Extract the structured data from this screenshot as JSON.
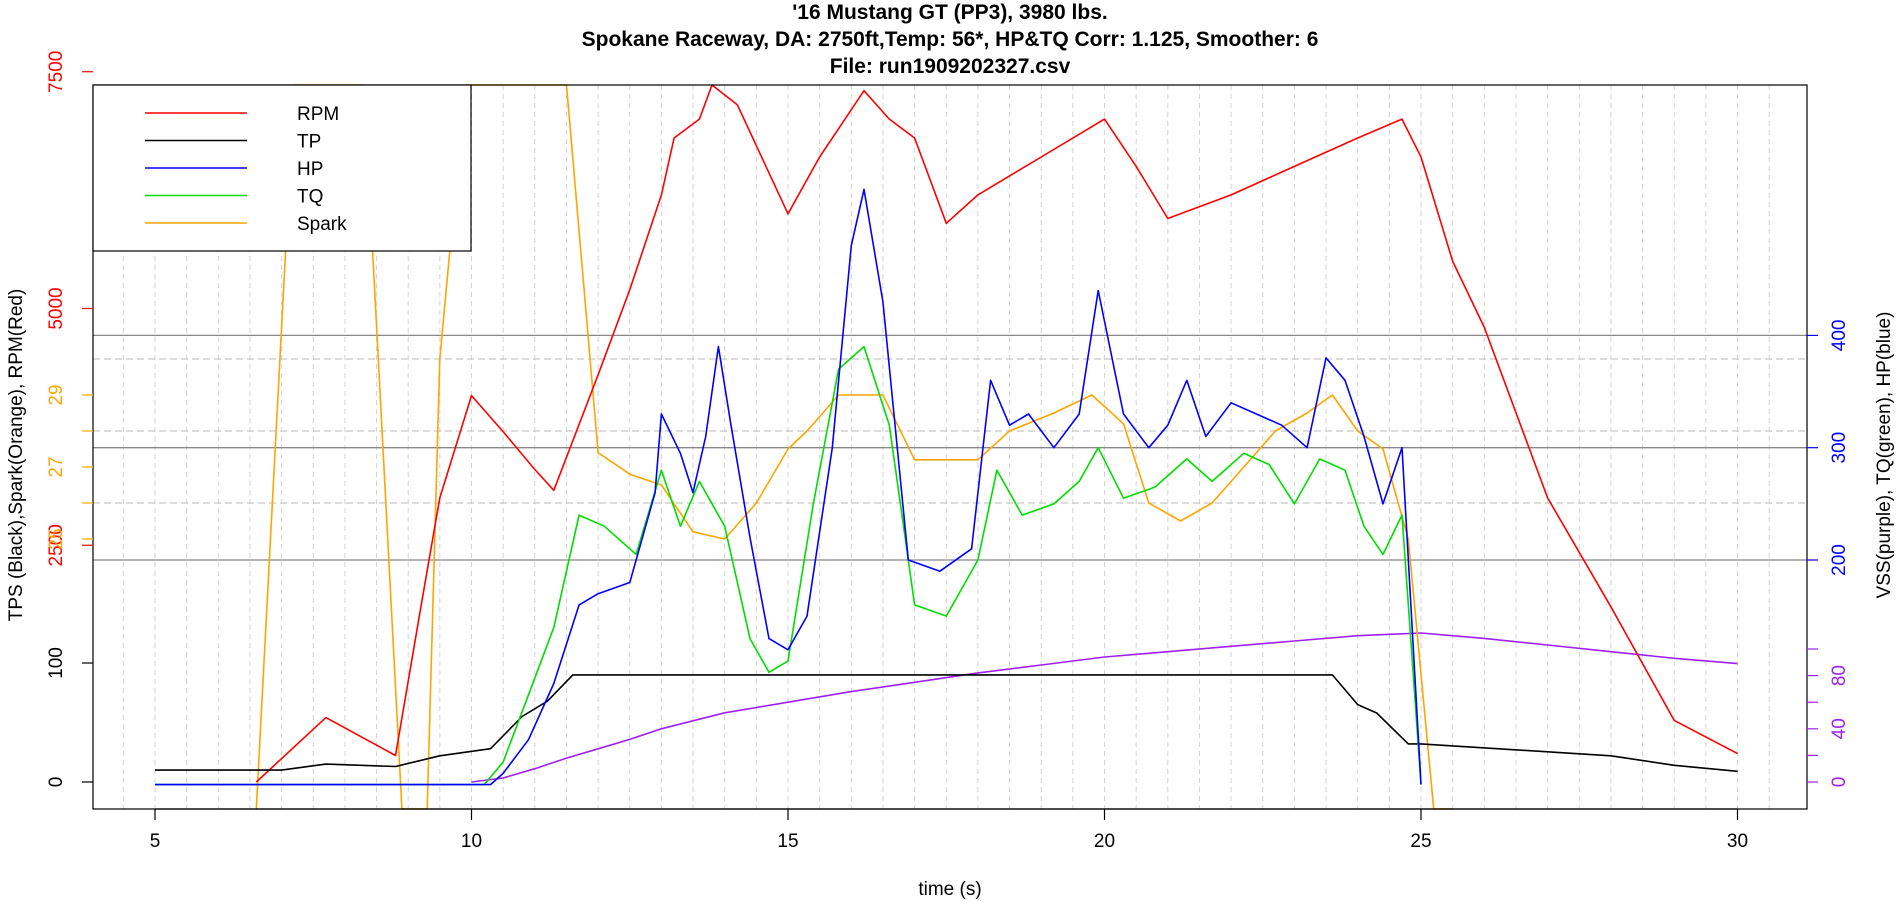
{
  "chart_data": {
    "type": "line",
    "title_lines": [
      "'16 Mustang GT (PP3), 3980 lbs.",
      "Spokane Raceway, DA: 2750ft,Temp: 56*, HP&TQ Corr: 1.125, Smoother: 6",
      "File: run1909202327.csv"
    ],
    "xlabel": "time (s)",
    "ylabel_left": "TPS (Black),Spark(Orange), RPM(Red)",
    "ylabel_right": "VSS(purple), TQ(green), HP(blue)",
    "xlim": [
      4,
      31
    ],
    "x_ticks": [
      "5",
      "10",
      "15",
      "20",
      "25",
      "30"
    ],
    "x_tick_values": [
      5,
      10,
      15,
      20,
      25,
      30
    ],
    "left_ticks": [
      {
        "label": "0",
        "color": "#000000",
        "tps": 0
      },
      {
        "label": "100",
        "color": "#000000",
        "tps": 100
      },
      {
        "label": "2500",
        "color": "#ff0000",
        "rpm": 2500
      },
      {
        "label": "5000",
        "color": "#ff0000",
        "rpm": 5000
      },
      {
        "label": "7500",
        "color": "#ff0000",
        "rpm": 7500
      },
      {
        "label": "25",
        "color": "#ffa500",
        "spark": 25
      },
      {
        "label": "27",
        "color": "#ffa500",
        "spark": 27
      },
      {
        "label": "29",
        "color": "#ffa500",
        "spark": 29
      }
    ],
    "right_ticks": [
      {
        "label": "0",
        "color": "#a020f0",
        "vss": 0
      },
      {
        "label": "40",
        "color": "#a020f0",
        "vss": 40
      },
      {
        "label": "80",
        "color": "#a020f0",
        "vss": 80
      },
      {
        "label": "200",
        "color": "#0000ff",
        "hp": 200
      },
      {
        "label": "300",
        "color": "#0000ff",
        "hp": 300
      },
      {
        "label": "400",
        "color": "#0000ff",
        "hp": 400
      }
    ],
    "colors": {
      "rpm": "#ff0000",
      "tp": "#000000",
      "hp": "#0000ff",
      "tq": "#00dd00",
      "spark": "#ffa500",
      "vss": "#a020f0"
    },
    "legend": {
      "position": "top-left",
      "items": [
        {
          "label": "RPM",
          "color": "#ff0000"
        },
        {
          "label": "TP",
          "color": "#000000"
        },
        {
          "label": "HP",
          "color": "#0000ff"
        },
        {
          "label": "TQ",
          "color": "#00dd00"
        },
        {
          "label": "Spark",
          "color": "#ffa500"
        }
      ]
    },
    "series": [
      {
        "name": "RPM",
        "color": "#ff0000",
        "units": "rpm",
        "points": [
          [
            6.6,
            0
          ],
          [
            7.7,
            680
          ],
          [
            8.8,
            280
          ],
          [
            9.2,
            1850
          ],
          [
            9.5,
            3000
          ],
          [
            10.0,
            4080
          ],
          [
            10.5,
            3700
          ],
          [
            11.0,
            3300
          ],
          [
            11.3,
            3080
          ],
          [
            12.0,
            4300
          ],
          [
            12.5,
            5200
          ],
          [
            13.0,
            6200
          ],
          [
            13.2,
            6800
          ],
          [
            13.6,
            7000
          ],
          [
            13.8,
            7650
          ],
          [
            14.2,
            7150
          ],
          [
            15.0,
            6000
          ],
          [
            15.5,
            6600
          ],
          [
            16.2,
            7300
          ],
          [
            16.6,
            7000
          ],
          [
            17.0,
            6800
          ],
          [
            17.5,
            5900
          ],
          [
            18.0,
            6200
          ],
          [
            19.0,
            6600
          ],
          [
            20.0,
            7000
          ],
          [
            20.5,
            6500
          ],
          [
            21.0,
            5950
          ],
          [
            22.0,
            6200
          ],
          [
            23.0,
            6500
          ],
          [
            24.0,
            6800
          ],
          [
            24.7,
            7000
          ],
          [
            25.0,
            6600
          ],
          [
            25.5,
            5500
          ],
          [
            26.0,
            4800
          ],
          [
            27.0,
            3000
          ],
          [
            28.0,
            1850
          ],
          [
            29.0,
            650
          ],
          [
            30.0,
            300
          ]
        ]
      },
      {
        "name": "TP",
        "color": "#000000",
        "units": "percent",
        "points": [
          [
            5,
            10
          ],
          [
            7,
            10
          ],
          [
            7.7,
            15
          ],
          [
            8.8,
            13
          ],
          [
            9.5,
            22
          ],
          [
            10.3,
            28
          ],
          [
            10.8,
            55
          ],
          [
            11.2,
            68
          ],
          [
            11.6,
            90
          ],
          [
            12.0,
            90
          ],
          [
            23.6,
            90
          ],
          [
            24.0,
            65
          ],
          [
            24.3,
            58
          ],
          [
            24.8,
            32
          ],
          [
            25.0,
            32
          ],
          [
            28.0,
            22
          ],
          [
            29.0,
            14
          ],
          [
            30.0,
            9
          ]
        ]
      },
      {
        "name": "Spark",
        "color": "#ffa500",
        "units": "deg",
        "points": [
          [
            6.6,
            0
          ],
          [
            7.2,
            200
          ],
          [
            7.7,
            560
          ],
          [
            8.3,
            180
          ],
          [
            8.9,
            0
          ],
          [
            9.3,
            0
          ],
          [
            9.5,
            30
          ],
          [
            9.9,
            560
          ],
          [
            10.3,
            740
          ],
          [
            10.6,
            620
          ],
          [
            11.1,
            460
          ],
          [
            11.5,
            370
          ],
          [
            12.0,
            27.4
          ],
          [
            12.5,
            26.8
          ],
          [
            13.0,
            26.5
          ],
          [
            13.5,
            25.2
          ],
          [
            14.0,
            25.0
          ],
          [
            14.5,
            26.0
          ],
          [
            15.0,
            27.5
          ],
          [
            15.3,
            28.0
          ],
          [
            15.8,
            29.0
          ],
          [
            16.5,
            29.0
          ],
          [
            17.0,
            27.2
          ],
          [
            17.5,
            27.2
          ],
          [
            18.0,
            27.2
          ],
          [
            18.5,
            28.0
          ],
          [
            19.2,
            28.5
          ],
          [
            19.8,
            29.0
          ],
          [
            20.3,
            28.2
          ],
          [
            20.7,
            26.0
          ],
          [
            21.2,
            25.5
          ],
          [
            21.7,
            26.0
          ],
          [
            22.2,
            27.0
          ],
          [
            22.7,
            28.0
          ],
          [
            23.2,
            28.5
          ],
          [
            23.6,
            29.0
          ],
          [
            24.0,
            28.0
          ],
          [
            24.4,
            27.5
          ],
          [
            24.8,
            25.0
          ],
          [
            25.2,
            -50
          ],
          [
            25.5,
            -200
          ]
        ]
      },
      {
        "name": "HP",
        "color": "#0000ff",
        "units": "hp",
        "points": [
          [
            5,
            0
          ],
          [
            10.0,
            0
          ],
          [
            10.3,
            0
          ],
          [
            10.5,
            10
          ],
          [
            10.9,
            40
          ],
          [
            11.3,
            90
          ],
          [
            11.7,
            160
          ],
          [
            12.0,
            170
          ],
          [
            12.5,
            180
          ],
          [
            12.9,
            260
          ],
          [
            13.0,
            330
          ],
          [
            13.3,
            295
          ],
          [
            13.5,
            260
          ],
          [
            13.7,
            310
          ],
          [
            13.9,
            390
          ],
          [
            14.1,
            320
          ],
          [
            14.4,
            220
          ],
          [
            14.7,
            130
          ],
          [
            15.0,
            120
          ],
          [
            15.3,
            150
          ],
          [
            15.7,
            300
          ],
          [
            16.0,
            480
          ],
          [
            16.2,
            530
          ],
          [
            16.5,
            430
          ],
          [
            16.9,
            200
          ],
          [
            17.4,
            190
          ],
          [
            17.9,
            210
          ],
          [
            18.2,
            360
          ],
          [
            18.5,
            320
          ],
          [
            18.8,
            330
          ],
          [
            19.2,
            300
          ],
          [
            19.6,
            330
          ],
          [
            19.9,
            440
          ],
          [
            20.3,
            330
          ],
          [
            20.7,
            300
          ],
          [
            21.0,
            320
          ],
          [
            21.3,
            360
          ],
          [
            21.6,
            310
          ],
          [
            22.0,
            340
          ],
          [
            22.4,
            330
          ],
          [
            22.8,
            320
          ],
          [
            23.2,
            300
          ],
          [
            23.5,
            380
          ],
          [
            23.8,
            360
          ],
          [
            24.1,
            310
          ],
          [
            24.4,
            250
          ],
          [
            24.7,
            300
          ],
          [
            25.0,
            0
          ]
        ]
      },
      {
        "name": "TQ",
        "color": "#00dd00",
        "units": "lb-ft",
        "points": [
          [
            5,
            0
          ],
          [
            10.2,
            0
          ],
          [
            10.5,
            20
          ],
          [
            10.9,
            80
          ],
          [
            11.3,
            140
          ],
          [
            11.7,
            240
          ],
          [
            12.1,
            230
          ],
          [
            12.6,
            205
          ],
          [
            13.0,
            280
          ],
          [
            13.3,
            230
          ],
          [
            13.6,
            270
          ],
          [
            14.0,
            230
          ],
          [
            14.4,
            130
          ],
          [
            14.7,
            100
          ],
          [
            15.0,
            110
          ],
          [
            15.4,
            250
          ],
          [
            15.8,
            370
          ],
          [
            16.2,
            390
          ],
          [
            16.6,
            320
          ],
          [
            17.0,
            160
          ],
          [
            17.5,
            150
          ],
          [
            18.0,
            200
          ],
          [
            18.3,
            280
          ],
          [
            18.7,
            240
          ],
          [
            19.2,
            250
          ],
          [
            19.6,
            270
          ],
          [
            19.9,
            300
          ],
          [
            20.3,
            255
          ],
          [
            20.8,
            265
          ],
          [
            21.3,
            290
          ],
          [
            21.7,
            270
          ],
          [
            22.2,
            295
          ],
          [
            22.6,
            285
          ],
          [
            23.0,
            250
          ],
          [
            23.4,
            290
          ],
          [
            23.8,
            280
          ],
          [
            24.1,
            230
          ],
          [
            24.4,
            205
          ],
          [
            24.7,
            240
          ],
          [
            25.0,
            0
          ]
        ]
      },
      {
        "name": "VSS",
        "color": "#a020f0",
        "units": "mph",
        "points": [
          [
            10.0,
            0
          ],
          [
            10.5,
            3
          ],
          [
            11.0,
            10
          ],
          [
            11.5,
            18
          ],
          [
            12.0,
            25
          ],
          [
            12.5,
            32
          ],
          [
            13.0,
            40
          ],
          [
            13.5,
            46
          ],
          [
            14.0,
            52
          ],
          [
            15.0,
            60
          ],
          [
            16.0,
            68
          ],
          [
            17.0,
            75
          ],
          [
            18.0,
            82
          ],
          [
            19.0,
            88
          ],
          [
            20.0,
            94
          ],
          [
            21.0,
            98
          ],
          [
            22.0,
            102
          ],
          [
            23.0,
            106
          ],
          [
            24.0,
            110
          ],
          [
            25.0,
            112
          ],
          [
            26.0,
            108
          ],
          [
            27.0,
            103
          ],
          [
            28.0,
            98
          ],
          [
            29.0,
            93
          ],
          [
            30.0,
            89
          ]
        ]
      }
    ]
  }
}
